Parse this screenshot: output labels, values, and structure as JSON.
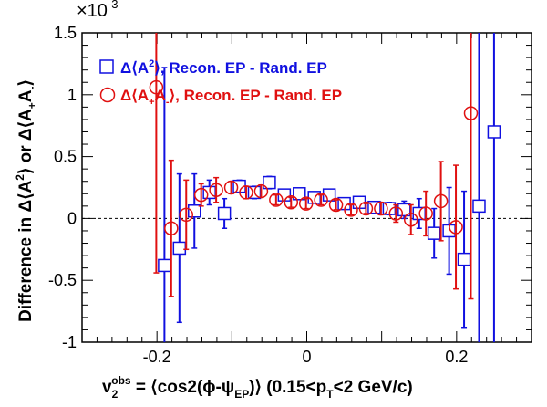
{
  "chart_data": {
    "type": "scatter",
    "title": "",
    "xlabel": "",
    "ylabel": "",
    "xlim": [
      -0.3,
      0.3
    ],
    "ylim": [
      -1.0,
      1.5
    ],
    "y_scale_label": "×10",
    "y_scale_exponent": "-3",
    "x_ticks": [
      -0.2,
      0,
      0.2
    ],
    "x_tick_labels": [
      "-0.2",
      "0",
      "0.2"
    ],
    "y_ticks": [
      -1,
      -0.5,
      0,
      0.5,
      1,
      1.5
    ],
    "y_tick_labels": [
      "-1",
      "-0.5",
      "0",
      "0.5",
      "1",
      "1.5"
    ],
    "reference_line": {
      "y": 0,
      "style": "dashed"
    },
    "legend_position": "top-left",
    "colors": {
      "blue": "#1010e0",
      "red": "#e01010",
      "axis": "#000000"
    },
    "series": [
      {
        "marker": "open-square",
        "color": "#1010e0",
        "legend_label": "Δ⟨A²⟩, Recon. EP - Rand. EP",
        "x": [
          -0.19,
          -0.17,
          -0.15,
          -0.13,
          -0.11,
          -0.09,
          -0.07,
          -0.05,
          -0.03,
          -0.01,
          0.01,
          0.03,
          0.05,
          0.07,
          0.09,
          0.11,
          0.13,
          0.15,
          0.17,
          0.19,
          0.21,
          0.23,
          0.25
        ],
        "y": [
          -0.38,
          -0.24,
          0.06,
          0.21,
          0.04,
          0.26,
          0.21,
          0.29,
          0.19,
          0.2,
          0.17,
          0.19,
          0.12,
          0.13,
          0.09,
          0.08,
          0.07,
          0.04,
          -0.12,
          -0.1,
          -0.33,
          0.1,
          0.7
        ],
        "err": [
          1.6,
          0.6,
          0.3,
          0.1,
          0.12,
          0.05,
          0.05,
          0.05,
          0.04,
          0.04,
          0.04,
          0.04,
          0.04,
          0.04,
          0.04,
          0.05,
          0.07,
          0.12,
          0.2,
          0.35,
          0.55,
          1.6,
          1.8
        ]
      },
      {
        "marker": "open-circle",
        "color": "#e01010",
        "legend_label": "Δ⟨A₊A₋⟩, Recon. EP - Rand. EP",
        "x": [
          -0.19,
          -0.17,
          -0.15,
          -0.13,
          -0.11,
          -0.09,
          -0.07,
          -0.05,
          -0.03,
          -0.01,
          0.01,
          0.03,
          0.05,
          0.07,
          0.09,
          0.11,
          0.13,
          0.15,
          0.17,
          0.19,
          0.21,
          0.23
        ],
        "y": [
          1.06,
          -0.08,
          0.03,
          0.19,
          0.23,
          0.25,
          0.21,
          0.22,
          0.15,
          0.13,
          0.12,
          0.15,
          0.11,
          0.07,
          0.08,
          0.08,
          0.04,
          -0.01,
          0.04,
          0.14,
          -0.07,
          0.85
        ],
        "err": [
          1.5,
          0.55,
          0.28,
          0.09,
          0.1,
          0.05,
          0.05,
          0.05,
          0.04,
          0.04,
          0.04,
          0.04,
          0.04,
          0.04,
          0.04,
          0.05,
          0.07,
          0.12,
          0.18,
          0.32,
          0.5,
          1.5
        ]
      }
    ]
  }
}
